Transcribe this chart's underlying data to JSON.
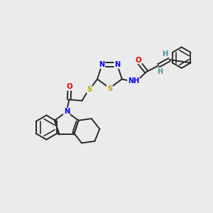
{
  "bg_color": "#ebebeb",
  "bond_color": "#2a2a2a",
  "bond_width": 1.4,
  "atom_colors": {
    "N": "#0000ee",
    "O": "#ee0000",
    "S": "#bbaa00",
    "H_vinyl": "#4a8fa0",
    "C": "#2a2a2a"
  },
  "figsize": [
    3.0,
    3.0
  ],
  "dpi": 100,
  "xlim": [
    0,
    10
  ],
  "ylim": [
    0,
    10
  ]
}
